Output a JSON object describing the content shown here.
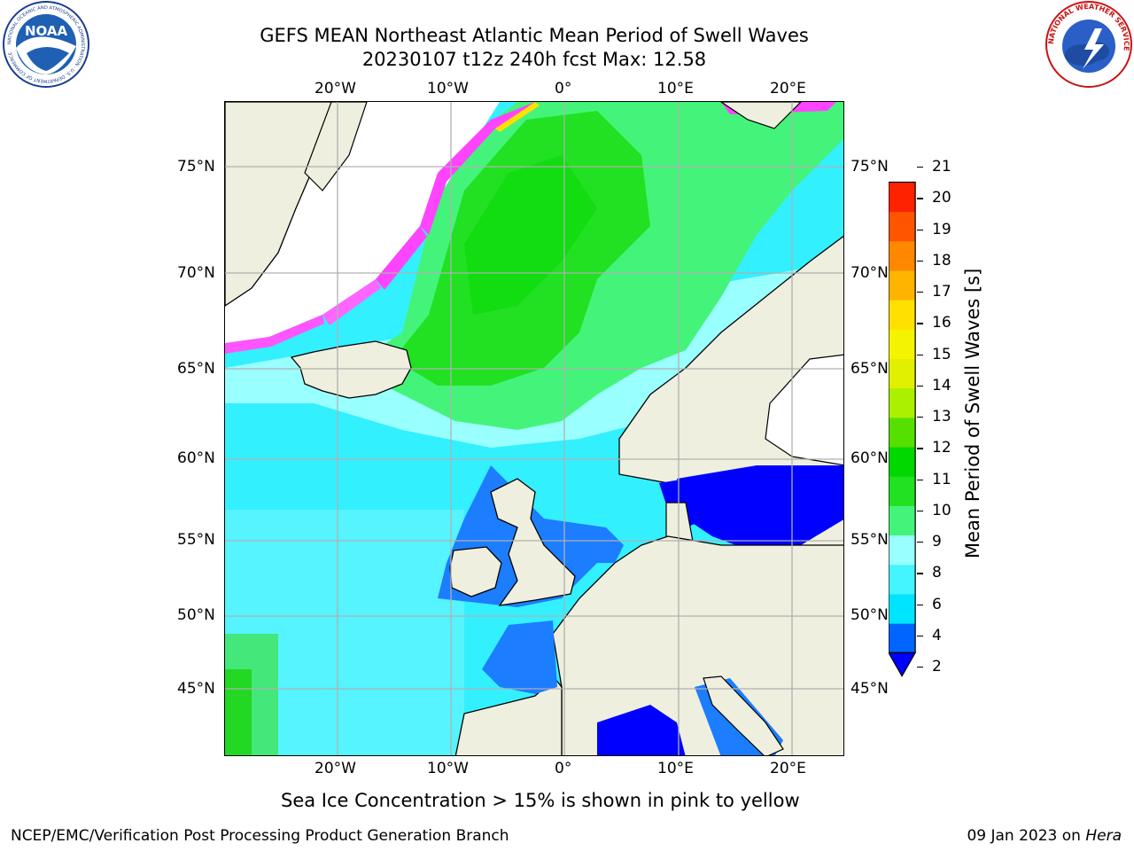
{
  "title": {
    "line1": "GEFS MEAN Northeast Atlantic Mean Period of Swell Waves",
    "line2": "20230107 t12z 240h fcst   Max: 12.58"
  },
  "map": {
    "lon_ticks": [
      "20°W",
      "10°W",
      "0°",
      "10°E",
      "20°E"
    ],
    "lat_ticks": [
      "75°N",
      "70°N",
      "65°N",
      "60°N",
      "55°N",
      "50°N",
      "45°N"
    ]
  },
  "colorbar": {
    "label": "Mean Period of Swell Waves [s]",
    "ticks": [
      "2",
      "4",
      "6",
      "8",
      "9",
      "10",
      "11",
      "12",
      "13",
      "14",
      "15",
      "16",
      "17",
      "18",
      "19",
      "20",
      "21"
    ],
    "colors": [
      "#0064ff",
      "#00e5ff",
      "#44f4ff",
      "#99ffff",
      "#44f47a",
      "#22e022",
      "#00d800",
      "#55e000",
      "#aaf000",
      "#e0f000",
      "#f4f400",
      "#ffe000",
      "#ffb400",
      "#ff8800",
      "#ff5500",
      "#ff2200"
    ],
    "under_color": "#0000ff"
  },
  "caption": "Sea Ice Concentration > 15% is shown in pink to yellow",
  "footer": {
    "left": "NCEP/EMC/Verification Post Processing Product Generation Branch",
    "right_date": "09 Jan 2023 on ",
    "right_host": "Hera"
  },
  "logos": {
    "left_text": "NOAA",
    "left_ring": "NATIONAL OCEANIC AND ATMOSPHERIC ADMINISTRATION · U.S. DEPARTMENT OF COMMERCE",
    "right_ring": "NATIONAL WEATHER SERVICE"
  }
}
